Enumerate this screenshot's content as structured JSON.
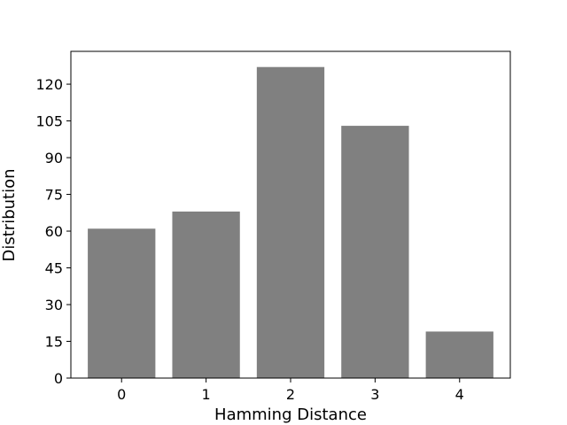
{
  "chart_data": {
    "type": "bar",
    "title": "",
    "xlabel": "Hamming Distance",
    "ylabel": "Distribution",
    "categories": [
      "0",
      "1",
      "2",
      "3",
      "4"
    ],
    "values": [
      61,
      68,
      127,
      103,
      19
    ],
    "ylim": [
      0,
      133.4
    ],
    "yticks": [
      0,
      15,
      30,
      45,
      60,
      75,
      90,
      105,
      120
    ],
    "bar_color": "#808080",
    "grid": false,
    "legend": "none"
  }
}
